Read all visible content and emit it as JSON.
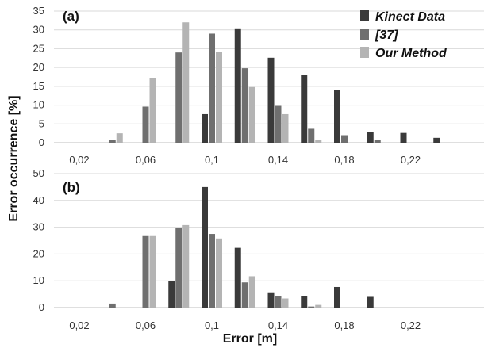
{
  "figure": {
    "ylabel": "Error occurrence [%]",
    "xlabel": "Error [m]"
  },
  "colors": {
    "Kinect Data": "#3a3a3a",
    "[37]": "#6f6f6f",
    "Our Method": "#b4b4b4"
  },
  "chart_data": [
    {
      "type": "bar",
      "panel_label": "(a)",
      "categories": [
        "0,02",
        "0,04",
        "0,06",
        "0,08",
        "0,1",
        "0,12",
        "0,14",
        "0,16",
        "0,18",
        "0,2",
        "0,22",
        "0,24"
      ],
      "x_tick_labels": [
        "0,02",
        "0,06",
        "0,1",
        "0,14",
        "0,18",
        "0,22"
      ],
      "ylim": [
        0,
        35
      ],
      "y_ticks": [
        "0",
        "5",
        "10",
        "15",
        "20",
        "25",
        "30",
        "35"
      ],
      "grid": true,
      "legend_position": "top-right",
      "series": [
        {
          "name": "Kinect Data",
          "values": [
            0,
            0,
            0,
            0,
            7.6,
            30.4,
            22.6,
            18.0,
            14.1,
            2.8,
            2.6,
            1.3
          ]
        },
        {
          "name": "[37]",
          "values": [
            0,
            0.7,
            9.6,
            24.0,
            29.0,
            19.8,
            9.8,
            3.7,
            2.0,
            0.7,
            0,
            0
          ]
        },
        {
          "name": "Our Method",
          "values": [
            0,
            2.5,
            17.2,
            32.0,
            24.1,
            14.8,
            7.6,
            0.8,
            0,
            0,
            0,
            0
          ]
        }
      ]
    },
    {
      "type": "bar",
      "panel_label": "(b)",
      "categories": [
        "0,02",
        "0,04",
        "0,06",
        "0,08",
        "0,1",
        "0,12",
        "0,14",
        "0,16",
        "0,18",
        "0,2",
        "0,22",
        "0,24"
      ],
      "x_tick_labels": [
        "0,02",
        "0,06",
        "0,1",
        "0,14",
        "0,18",
        "0,22"
      ],
      "xlabel": "Error [m]",
      "ylim": [
        0,
        50
      ],
      "y_ticks": [
        "0",
        "10",
        "20",
        "30",
        "40",
        "50"
      ],
      "grid": true,
      "series": [
        {
          "name": "Kinect Data",
          "values": [
            0,
            0,
            0,
            9.8,
            45.0,
            22.3,
            5.7,
            4.3,
            7.7,
            4.0,
            0,
            0
          ]
        },
        {
          "name": "[37]",
          "values": [
            0,
            1.5,
            26.7,
            29.7,
            27.5,
            9.4,
            4.3,
            0.4,
            0,
            0,
            0,
            0
          ]
        },
        {
          "name": "Our Method",
          "values": [
            0,
            0,
            26.7,
            30.8,
            25.8,
            11.7,
            3.4,
            1.0,
            0,
            0,
            0,
            0
          ]
        }
      ]
    }
  ]
}
